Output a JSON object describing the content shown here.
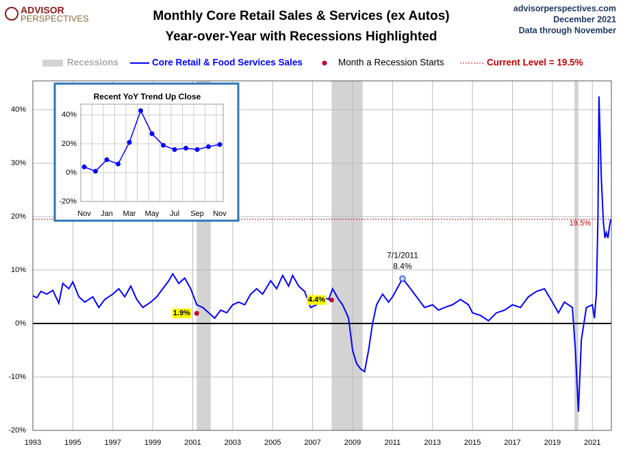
{
  "logo": [
    "ADVISOR",
    "PERSPECTIVES"
  ],
  "chart_data": [
    {
      "type": "line",
      "title": "Monthly Core Retail Sales & Services (ex Autos)",
      "subtitle": "Year-over-Year with Recessions Highlighted",
      "source": [
        "advisorperspectives.com",
        "December 2021",
        "Data through November"
      ],
      "xlim": [
        1993,
        2021.95
      ],
      "xticks": [
        1993,
        1995,
        1997,
        1999,
        2001,
        2003,
        2005,
        2007,
        2009,
        2011,
        2013,
        2015,
        2017,
        2019,
        2021
      ],
      "ylim": [
        -20,
        45.4
      ],
      "yticks": [
        {
          "value": -20,
          "label": "-20%"
        },
        {
          "value": -10,
          "label": "-10%"
        },
        {
          "value": 0,
          "label": "0%"
        },
        {
          "value": 10,
          "label": "10%"
        },
        {
          "value": 20,
          "label": "20%"
        },
        {
          "value": 30,
          "label": "30%"
        },
        {
          "value": 40,
          "label": "40%"
        }
      ],
      "grid": true,
      "recessions": {
        "name": "Recessions",
        "color": "#d3d3d3",
        "spans": [
          [
            2001.2,
            2001.9
          ],
          [
            2007.95,
            2009.5
          ],
          [
            2020.1,
            2020.3
          ]
        ]
      },
      "series": [
        {
          "name": "Core Retail & Food Services Sales",
          "color": "#0000ff",
          "x": [
            1993,
            1993.2,
            1993.4,
            1993.7,
            1994,
            1994.3,
            1994.5,
            1994.8,
            1995,
            1995.3,
            1995.6,
            1996,
            1996.3,
            1996.6,
            1997,
            1997.3,
            1997.6,
            1997.9,
            1998.2,
            1998.5,
            1998.9,
            1999.2,
            1999.5,
            1999.8,
            2000,
            2000.3,
            2000.6,
            2000.9,
            2001.2,
            2001.5,
            2001.8,
            2002.1,
            2002.4,
            2002.7,
            2003,
            2003.3,
            2003.6,
            2003.9,
            2004.2,
            2004.5,
            2004.9,
            2005.2,
            2005.5,
            2005.8,
            2006,
            2006.3,
            2006.6,
            2006.9,
            2007.2,
            2007.5,
            2007.8,
            2008,
            2008.3,
            2008.5,
            2008.8,
            2009,
            2009.2,
            2009.4,
            2009.6,
            2009.8,
            2010,
            2010.2,
            2010.5,
            2010.8,
            2011,
            2011.5,
            2011.8,
            2012,
            2012.3,
            2012.6,
            2013,
            2013.3,
            2013.6,
            2014,
            2014.4,
            2014.8,
            2015,
            2015.4,
            2015.8,
            2016.2,
            2016.6,
            2017,
            2017.4,
            2017.8,
            2018.2,
            2018.6,
            2019,
            2019.3,
            2019.6,
            2020,
            2020.15,
            2020.3,
            2020.45,
            2020.7,
            2021,
            2021.1,
            2021.2,
            2021.28,
            2021.33,
            2021.45,
            2021.55,
            2021.63,
            2021.7,
            2021.78,
            2021.85,
            2021.92
          ],
          "values": [
            5.2,
            4.8,
            6,
            5.5,
            6.2,
            3.8,
            7.5,
            6.5,
            7.8,
            5,
            4,
            5,
            3,
            4.5,
            5.5,
            6.5,
            5,
            7,
            4.5,
            3,
            4,
            5,
            6.5,
            8,
            9.3,
            7.5,
            8.5,
            6.5,
            3.5,
            3,
            2,
            1,
            2.5,
            2,
            3.5,
            4,
            3.5,
            5.5,
            6.5,
            5.5,
            8,
            6.5,
            9,
            7,
            9,
            7,
            6,
            3,
            3.5,
            5,
            4.5,
            6.5,
            4.5,
            3.5,
            1,
            -5,
            -7.5,
            -8.5,
            -9,
            -5,
            0,
            3.5,
            5.5,
            4,
            5,
            8.4,
            7,
            6,
            4.5,
            3,
            3.5,
            2.5,
            3,
            3.5,
            4.5,
            3.5,
            2,
            1.5,
            0.5,
            2,
            2.5,
            3.5,
            3,
            5,
            6,
            6.5,
            4,
            2,
            4,
            3,
            -5,
            -16.5,
            -3,
            3,
            3.5,
            1,
            5.5,
            20,
            42.5,
            27,
            19,
            16,
            17,
            16,
            18,
            19.5
          ]
        }
      ],
      "recession_starts": {
        "name": "Month a Recession Starts",
        "color": "#c00030",
        "points": [
          {
            "x": 2001.2,
            "y": 1.9,
            "label": "1.9%"
          },
          {
            "x": 2007.95,
            "y": 4.4,
            "label": "4.4%"
          }
        ]
      },
      "annotation": {
        "x": 2011.5,
        "y": 8.4,
        "date": "7/1/2011",
        "label": "8.4%"
      },
      "current": {
        "name": "Current Level = 19.5%",
        "color": "#c00000",
        "value": 19.5,
        "label": "19.5%"
      }
    },
    {
      "type": "line",
      "title": "Recent  YoY Trend Up Close",
      "categories": [
        "Nov",
        null,
        "Jan",
        null,
        "Mar",
        null,
        "May",
        null,
        "Jul",
        null,
        "Sep",
        null,
        "Nov"
      ],
      "values": [
        4,
        1,
        9,
        6,
        21,
        43,
        27,
        19,
        16,
        17,
        16,
        18,
        19.5
      ],
      "color": "#0000ff",
      "ylim": [
        -20,
        47.5
      ],
      "yticks": [
        {
          "value": -20,
          "label": "-20%"
        },
        {
          "value": 0,
          "label": "0%"
        },
        {
          "value": 20,
          "label": "20%"
        },
        {
          "value": 40,
          "label": "40%"
        }
      ],
      "grid": true
    }
  ]
}
